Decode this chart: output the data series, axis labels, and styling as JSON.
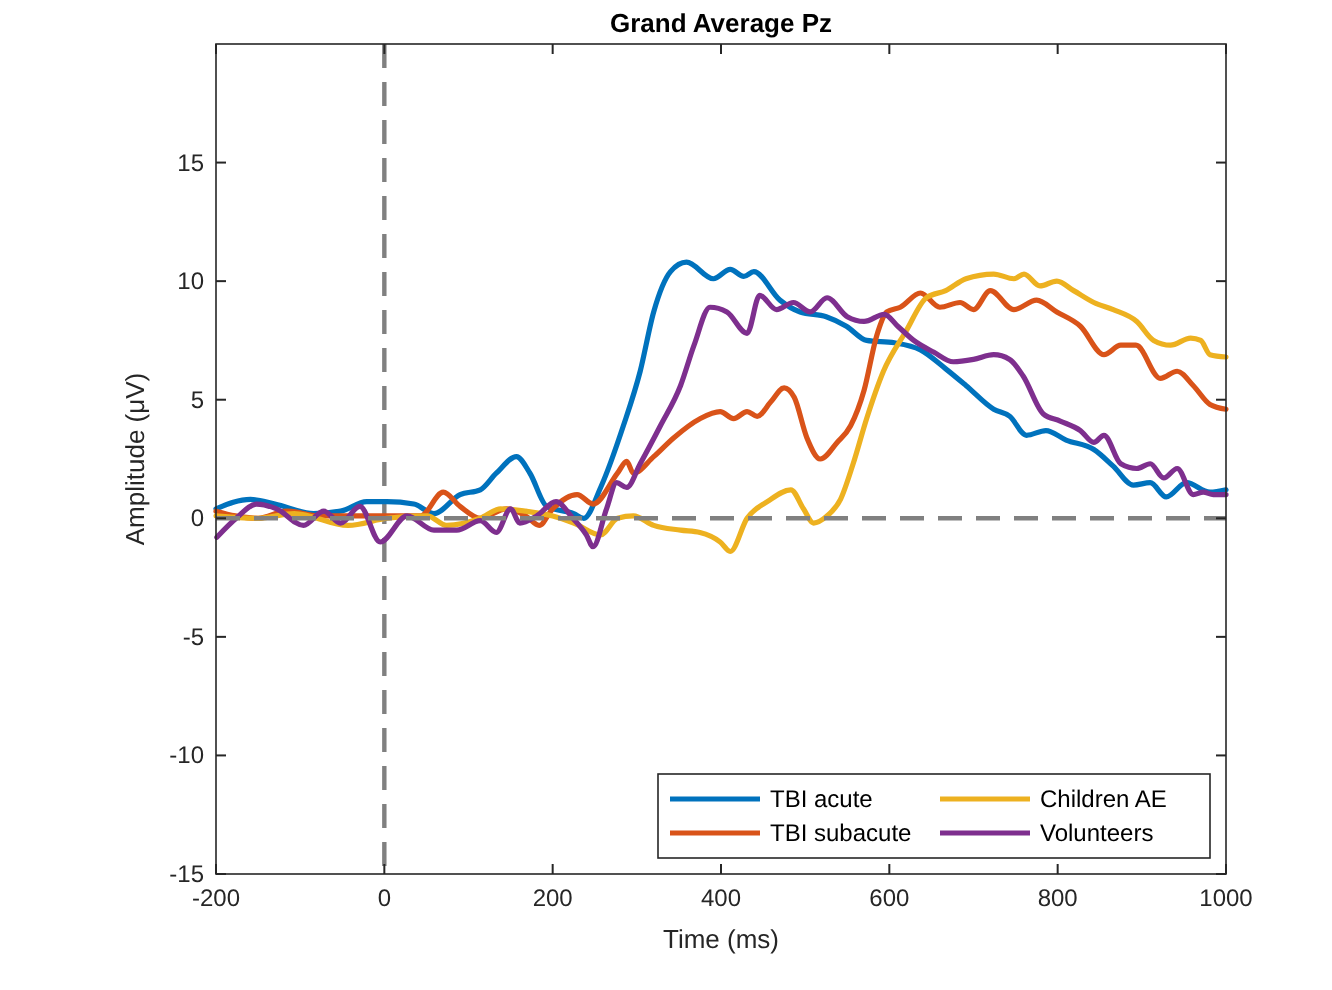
{
  "chart_data": {
    "type": "line",
    "title": "Grand Average Pz",
    "xlabel": "Time (ms)",
    "ylabel": "Amplitude (μV)",
    "xlim": [
      -200,
      1000
    ],
    "xticks": [
      -200,
      0,
      200,
      400,
      600,
      800,
      1000
    ],
    "ylim": [
      -15,
      20
    ],
    "yticks": [
      -15,
      -10,
      -5,
      0,
      5,
      10,
      15
    ],
    "grid": false,
    "legend": "bottom right",
    "line_style": "solid",
    "marker": "none",
    "ref_lines": [
      {
        "axis": "y",
        "value": 0,
        "color": "#808080",
        "line_style": "dashed"
      },
      {
        "axis": "x",
        "value": 0,
        "color": "#808080",
        "line_style": "dashed"
      }
    ],
    "series": [
      {
        "name": "TBI acute",
        "color": "#0072bd",
        "x": [
          -200,
          -159,
          -130,
          -84,
          -52,
          -21,
          3,
          35,
          59,
          90,
          114,
          133,
          157,
          173,
          193,
          225,
          237,
          257,
          284,
          304,
          320,
          340,
          359,
          391,
          411,
          427,
          439,
          470,
          494,
          525,
          549,
          573,
          606,
          637,
          667,
          691,
          724,
          743,
          763,
          786,
          810,
          843,
          866,
          890,
          910,
          929,
          953,
          981,
          1000
        ],
        "values": [
          0.4,
          0.8,
          0.6,
          0.2,
          0.3,
          0.7,
          0.7,
          0.6,
          0.2,
          1.0,
          1.2,
          1.9,
          2.6,
          1.9,
          0.5,
          0.2,
          0.0,
          1.3,
          3.9,
          6.2,
          8.7,
          10.4,
          10.8,
          10.1,
          10.5,
          10.2,
          10.4,
          9.2,
          8.7,
          8.5,
          8.1,
          7.5,
          7.4,
          7.1,
          6.3,
          5.6,
          4.6,
          4.3,
          3.5,
          3.7,
          3.3,
          2.9,
          2.2,
          1.4,
          1.5,
          0.9,
          1.5,
          1.1,
          1.2
        ]
      },
      {
        "name": "TBI subacute",
        "color": "#d95319",
        "x": [
          -200,
          -177,
          -150,
          -116,
          -77,
          3,
          43,
          70,
          90,
          114,
          145,
          168,
          184,
          200,
          229,
          248,
          277,
          288,
          296,
          320,
          344,
          375,
          399,
          415,
          431,
          443,
          459,
          475,
          487,
          502,
          518,
          538,
          554,
          570,
          585,
          597,
          613,
          637,
          660,
          684,
          700,
          720,
          748,
          775,
          799,
          827,
          855,
          875,
          893,
          922,
          942,
          961,
          981,
          1000
        ],
        "values": [
          0.3,
          0.1,
          0.0,
          0.3,
          0.1,
          0.1,
          0.1,
          1.1,
          0.5,
          0.0,
          0.4,
          0.1,
          -0.3,
          0.4,
          1.0,
          0.6,
          1.9,
          2.4,
          1.9,
          2.6,
          3.4,
          4.2,
          4.5,
          4.2,
          4.5,
          4.3,
          4.9,
          5.5,
          5.1,
          3.4,
          2.5,
          3.2,
          3.9,
          5.4,
          7.7,
          8.7,
          8.9,
          9.5,
          8.9,
          9.1,
          8.8,
          9.6,
          8.8,
          9.2,
          8.7,
          8.1,
          6.9,
          7.3,
          7.3,
          5.9,
          6.2,
          5.6,
          4.8,
          4.6
        ]
      },
      {
        "name": "Children AE",
        "color": "#edb120",
        "x": [
          -200,
          -150,
          -107,
          -43,
          3,
          51,
          74,
          114,
          138,
          168,
          200,
          225,
          257,
          277,
          296,
          320,
          352,
          375,
          399,
          411,
          431,
          455,
          483,
          498,
          510,
          526,
          542,
          557,
          573,
          593,
          620,
          644,
          667,
          691,
          724,
          748,
          760,
          779,
          799,
          819,
          843,
          866,
          894,
          914,
          934,
          958,
          970,
          981,
          1000
        ],
        "values": [
          0.1,
          0.0,
          0.2,
          -0.3,
          0.0,
          0.1,
          -0.3,
          0.0,
          0.4,
          0.3,
          0.1,
          -0.2,
          -0.7,
          0.0,
          0.1,
          -0.3,
          -0.5,
          -0.6,
          -1.0,
          -1.4,
          0.0,
          0.7,
          1.2,
          0.4,
          -0.2,
          0.1,
          0.8,
          2.3,
          4.2,
          6.2,
          7.9,
          9.3,
          9.6,
          10.1,
          10.3,
          10.1,
          10.3,
          9.8,
          10.0,
          9.6,
          9.1,
          8.8,
          8.3,
          7.5,
          7.3,
          7.6,
          7.5,
          6.9,
          6.8
        ]
      },
      {
        "name": "Volunteers",
        "color": "#7e2f8e",
        "x": [
          -199,
          -176,
          -152,
          -128,
          -96,
          -72,
          -52,
          -29,
          -5,
          27,
          59,
          86,
          114,
          133,
          150,
          161,
          181,
          204,
          224,
          240,
          248,
          264,
          276,
          288,
          304,
          328,
          352,
          368,
          387,
          407,
          431,
          446,
          466,
          486,
          506,
          526,
          550,
          570,
          594,
          610,
          629,
          653,
          676,
          700,
          724,
          743,
          759,
          783,
          803,
          827,
          843,
          855,
          875,
          894,
          910,
          926,
          942,
          961,
          973,
          985,
          1000
        ],
        "values": [
          -0.8,
          0.0,
          0.6,
          0.4,
          -0.3,
          0.3,
          -0.2,
          0.5,
          -1.0,
          0.1,
          -0.5,
          -0.5,
          -0.1,
          -0.6,
          0.4,
          -0.2,
          0.1,
          0.7,
          0.0,
          -0.7,
          -1.2,
          0.4,
          1.5,
          1.3,
          2.3,
          3.9,
          5.6,
          7.3,
          8.9,
          8.7,
          7.8,
          9.4,
          8.8,
          9.1,
          8.7,
          9.3,
          8.5,
          8.3,
          8.6,
          8.1,
          7.5,
          7.0,
          6.6,
          6.7,
          6.9,
          6.7,
          6.0,
          4.4,
          4.1,
          3.7,
          3.2,
          3.5,
          2.3,
          2.1,
          2.3,
          1.7,
          2.1,
          1.0,
          1.1,
          1.0,
          1.0
        ]
      }
    ]
  }
}
